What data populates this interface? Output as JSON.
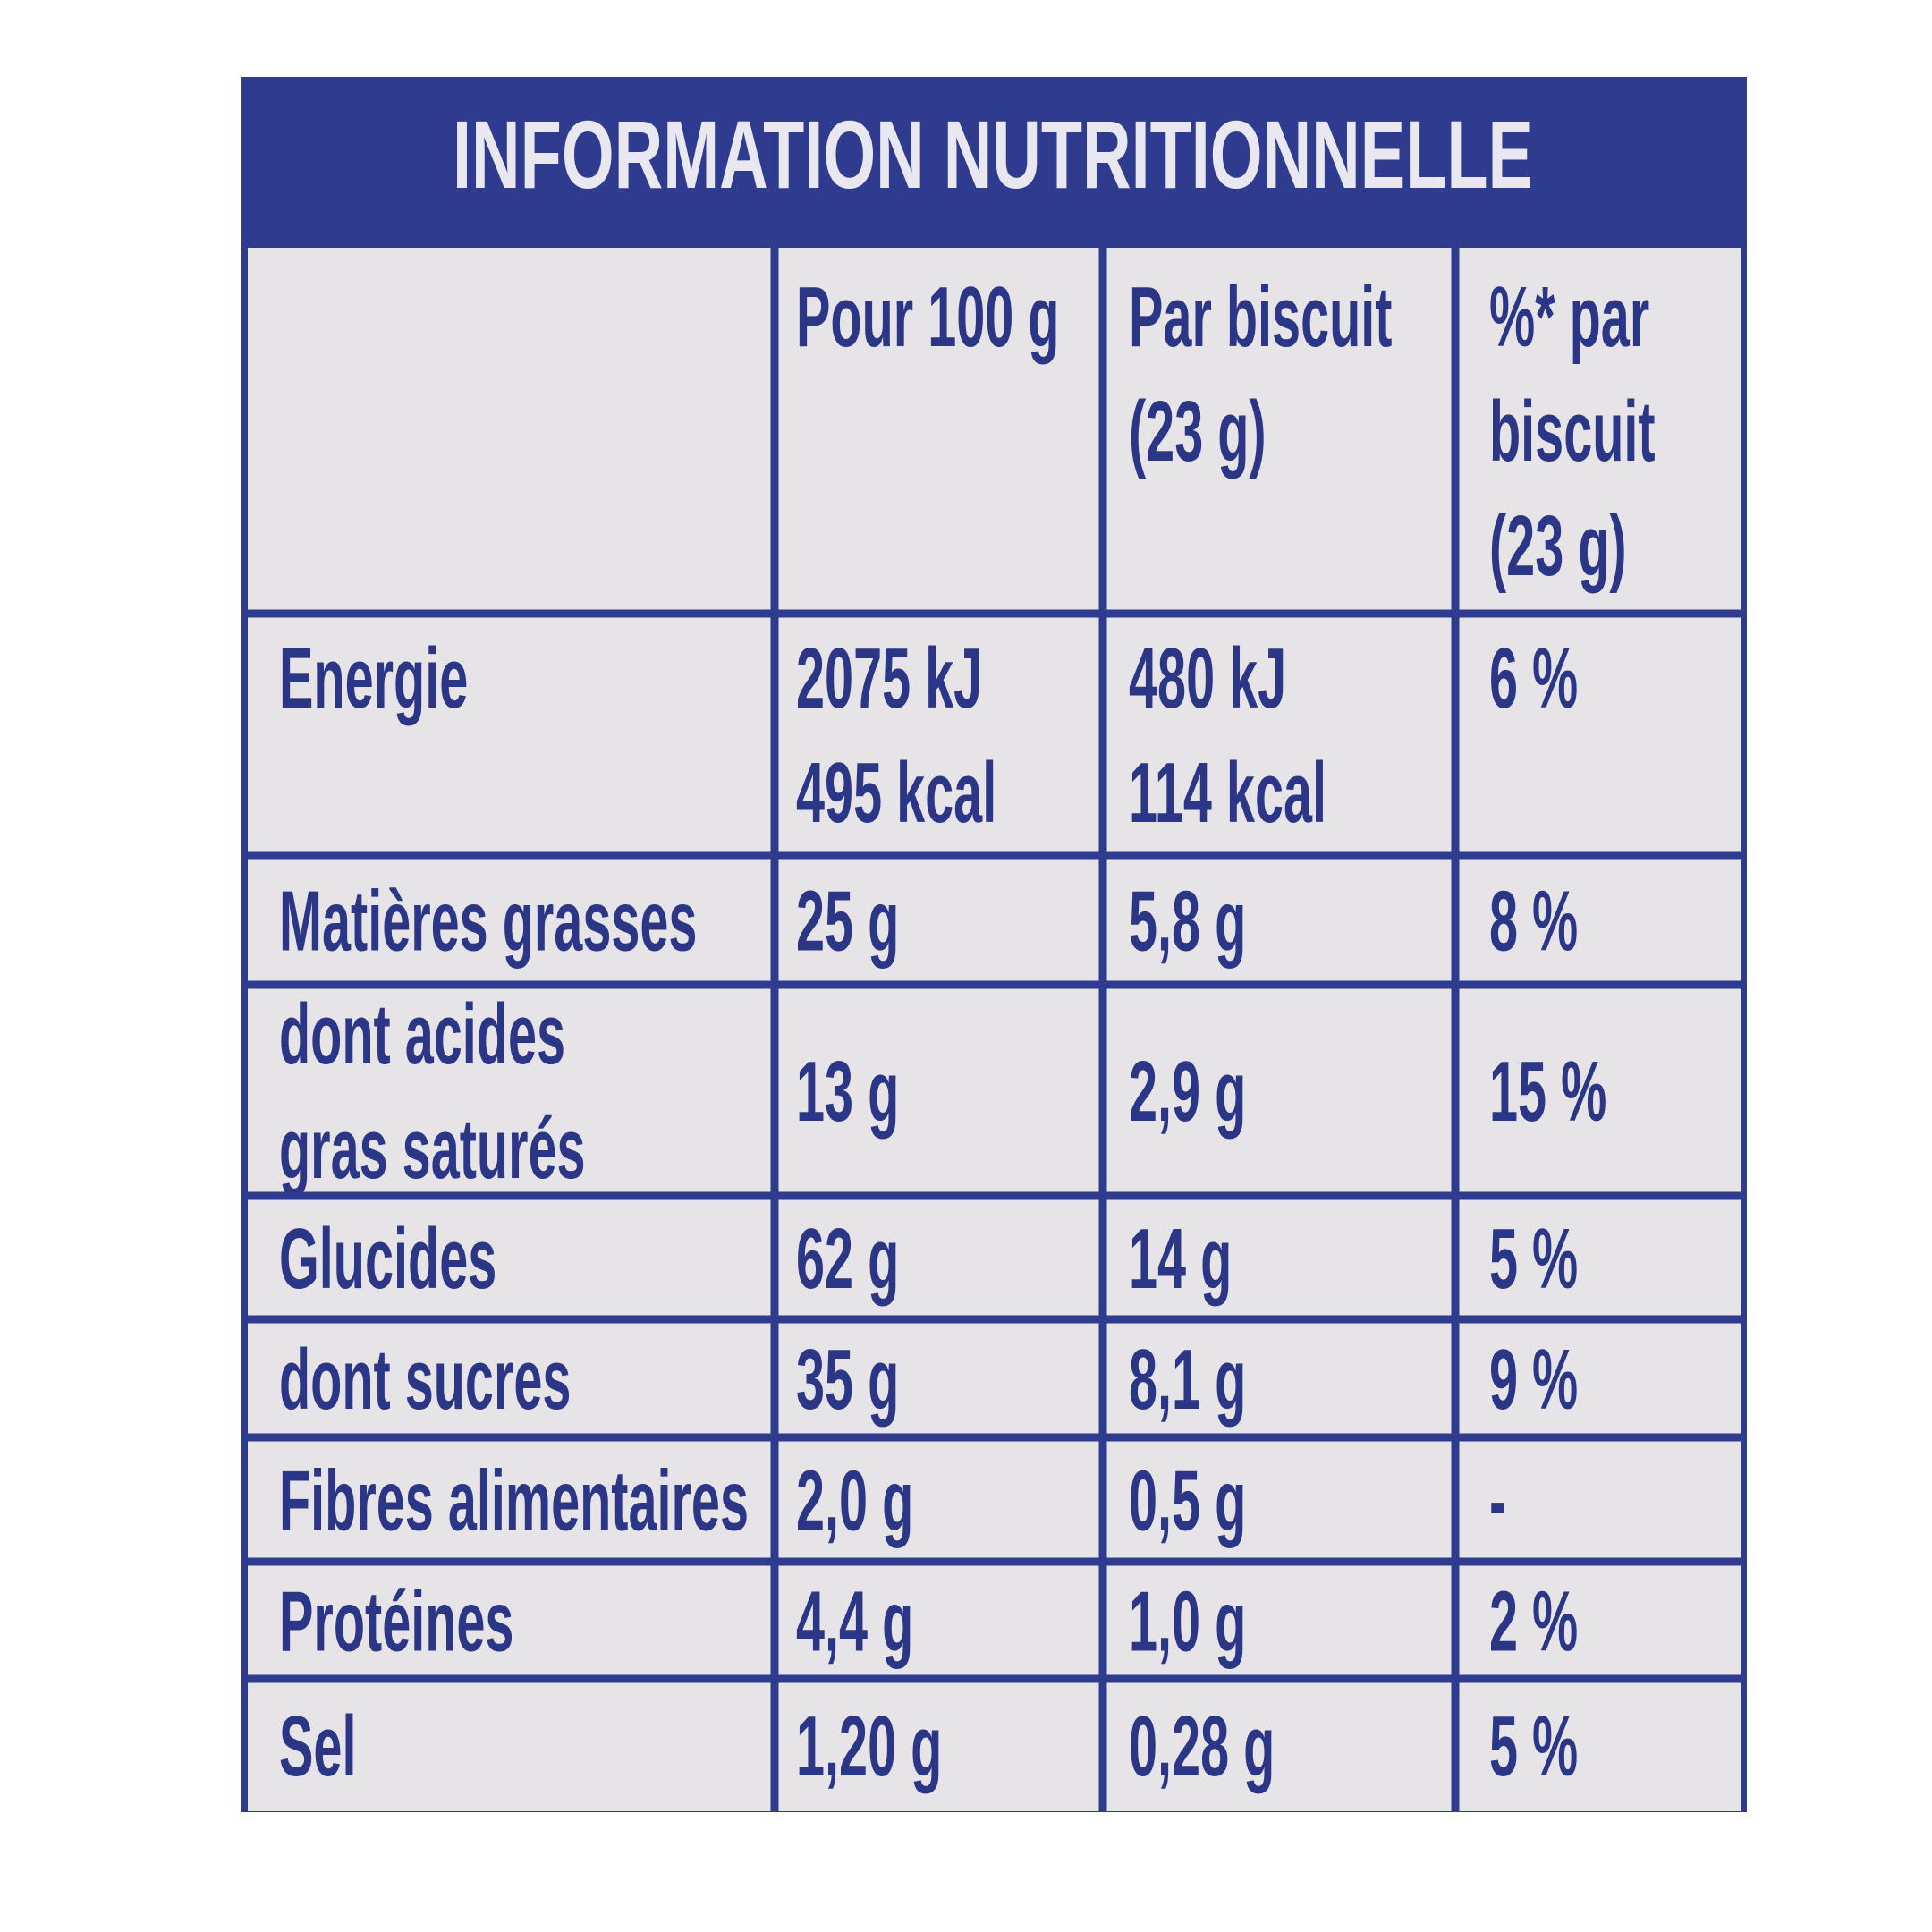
{
  "title": "INFORMATION NUTRITIONNELLE",
  "table": {
    "header": [
      [
        "Pour 100 g"
      ],
      [
        "Par biscuit",
        "(23 g)"
      ],
      [
        "%* par",
        "biscuit",
        "(23 g)"
      ]
    ],
    "rows": [
      {
        "label": [
          "Energie"
        ],
        "cells": [
          [
            "2075 kJ",
            "495 kcal"
          ],
          [
            "480 kJ",
            "114 kcal"
          ],
          [
            "6 %"
          ]
        ]
      },
      {
        "label": [
          "Matières grasses"
        ],
        "cells": [
          [
            "25 g"
          ],
          [
            "5,8 g"
          ],
          [
            "8 %"
          ]
        ]
      },
      {
        "label": [
          "dont acides",
          "gras saturés"
        ],
        "cells": [
          [
            "13 g"
          ],
          [
            "2,9 g"
          ],
          [
            "15 %"
          ]
        ]
      },
      {
        "label": [
          "Glucides"
        ],
        "cells": [
          [
            "62 g"
          ],
          [
            "14 g"
          ],
          [
            "5 %"
          ]
        ]
      },
      {
        "label": [
          "dont sucres"
        ],
        "cells": [
          [
            "35 g"
          ],
          [
            "8,1 g"
          ],
          [
            "9 %"
          ]
        ]
      },
      {
        "label": [
          "Fibres alimentaires"
        ],
        "cells": [
          [
            "2,0 g"
          ],
          [
            "0,5 g"
          ],
          [
            "-"
          ]
        ]
      },
      {
        "label": [
          "Protéines"
        ],
        "cells": [
          [
            "4,4 g"
          ],
          [
            "1,0 g"
          ],
          [
            "2 %"
          ]
        ]
      },
      {
        "label": [
          "Sel"
        ],
        "cells": [
          [
            "1,20 g"
          ],
          [
            "0,28 g"
          ],
          [
            "5 %"
          ]
        ]
      }
    ]
  }
}
